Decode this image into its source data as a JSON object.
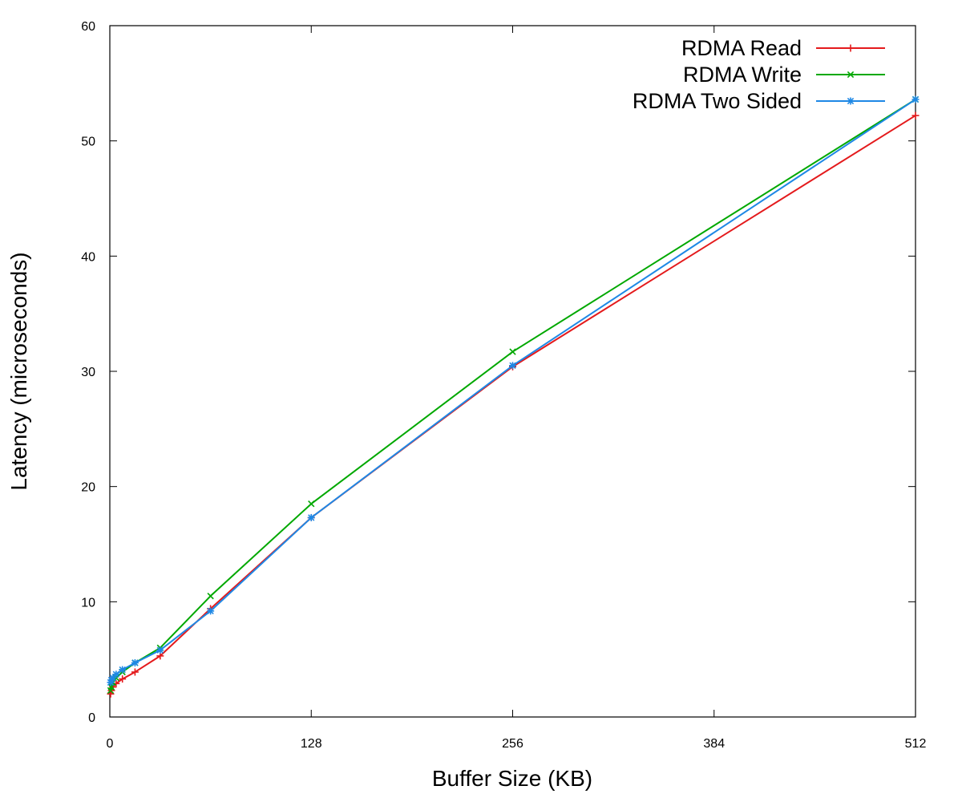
{
  "chart_data": {
    "type": "line",
    "title": "",
    "xlabel": "Buffer Size (KB)",
    "ylabel": "Latency (microseconds)",
    "xlim": [
      0,
      512
    ],
    "ylim": [
      0,
      60
    ],
    "x_ticks": [
      0,
      128,
      256,
      384,
      512
    ],
    "y_ticks": [
      0,
      10,
      20,
      30,
      40,
      50,
      60
    ],
    "grid": false,
    "legend_position": "top-right",
    "series": [
      {
        "name": "RDMA Read",
        "color": "#e41a1c",
        "marker": "plus",
        "x": [
          0.5,
          1,
          2,
          4,
          8,
          16,
          32,
          64,
          128,
          256,
          512
        ],
        "y": [
          2.0,
          2.3,
          2.6,
          2.9,
          3.3,
          3.9,
          5.3,
          9.4,
          17.3,
          30.4,
          52.2
        ]
      },
      {
        "name": "RDMA Write",
        "color": "#00a800",
        "marker": "cross",
        "x": [
          0.5,
          1,
          2,
          4,
          8,
          16,
          32,
          64,
          128,
          256,
          512
        ],
        "y": [
          2.3,
          2.6,
          3.0,
          3.4,
          3.9,
          4.7,
          6.0,
          10.5,
          18.5,
          31.7,
          53.6
        ]
      },
      {
        "name": "RDMA Two Sided",
        "color": "#1e88e5",
        "marker": "star",
        "x": [
          0.5,
          1,
          2,
          4,
          8,
          16,
          32,
          64,
          128,
          256,
          512
        ],
        "y": [
          3.0,
          3.2,
          3.4,
          3.7,
          4.1,
          4.7,
          5.8,
          9.2,
          17.3,
          30.5,
          53.6
        ]
      }
    ]
  }
}
